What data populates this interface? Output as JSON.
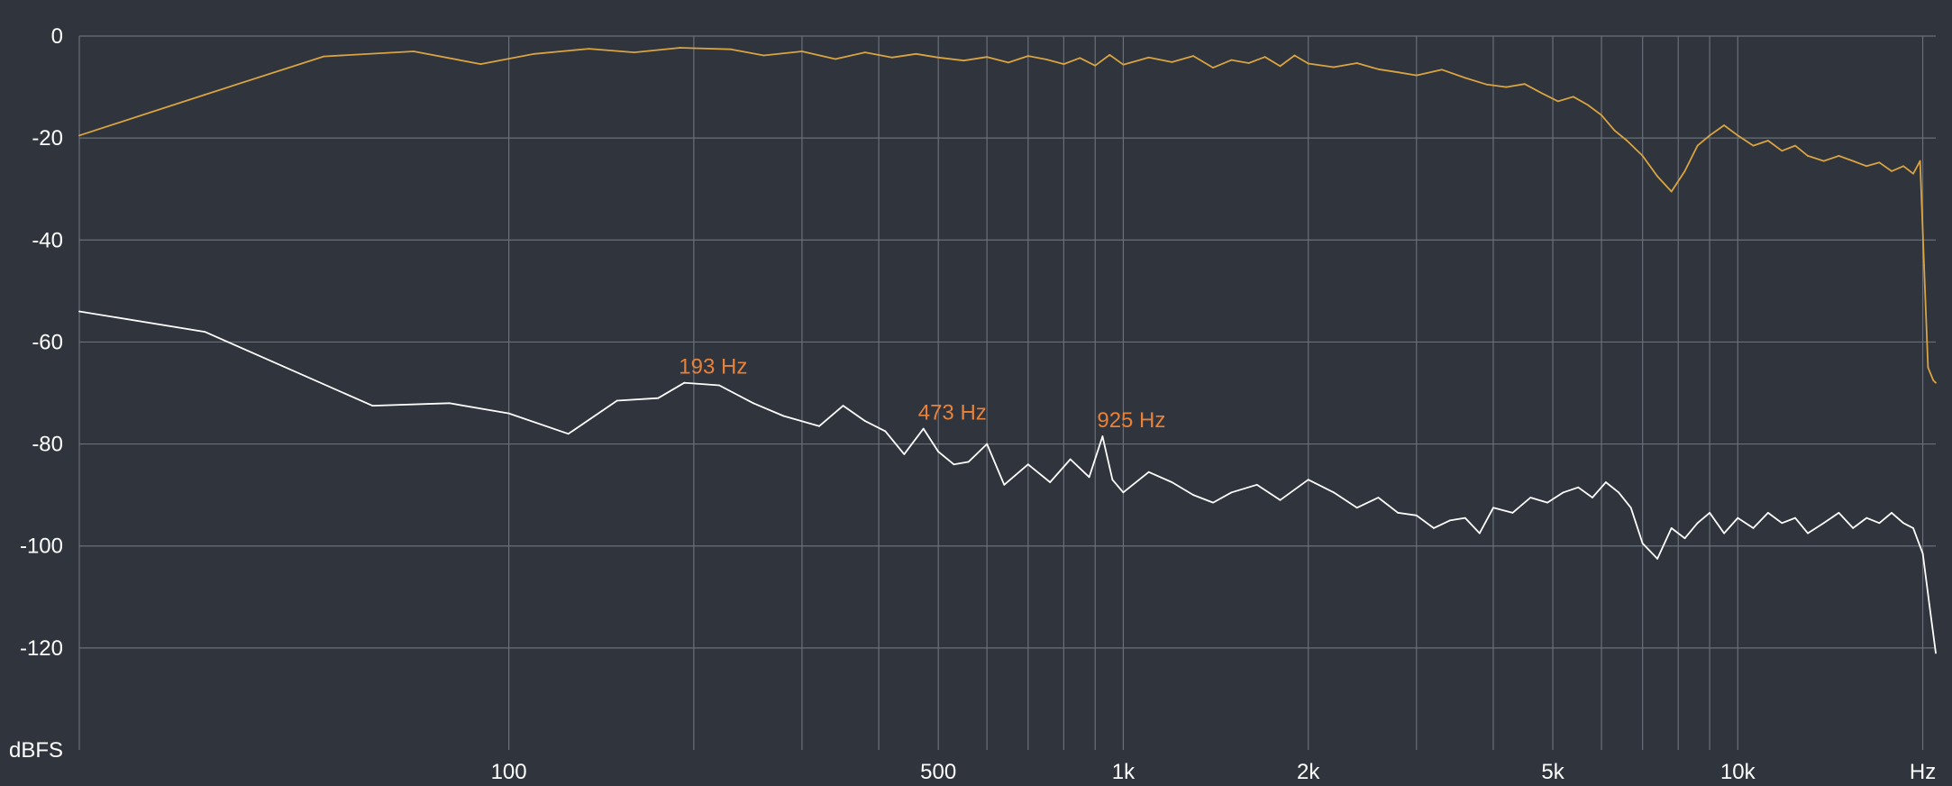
{
  "chart_data": {
    "type": "line",
    "x_scale": "log",
    "xlim": [
      20,
      21000
    ],
    "ylim": [
      -140,
      0
    ],
    "grid": true,
    "ylabel": "dBFS",
    "xlabel": "",
    "x_tick_labels": [
      {
        "value": 100,
        "label": "100"
      },
      {
        "value": 500,
        "label": "500"
      },
      {
        "value": 1000,
        "label": "1k"
      },
      {
        "value": 2000,
        "label": "2k"
      },
      {
        "value": 5000,
        "label": "5k"
      },
      {
        "value": 10000,
        "label": "10k"
      },
      {
        "value": 20000,
        "label": "Hz"
      }
    ],
    "y_ticks": [
      0,
      -20,
      -40,
      -60,
      -80,
      -100,
      -120
    ],
    "x_grid": [
      100,
      200,
      300,
      400,
      500,
      600,
      700,
      800,
      900,
      1000,
      2000,
      3000,
      4000,
      5000,
      6000,
      7000,
      8000,
      9000,
      10000,
      20000
    ],
    "series": [
      {
        "color": "#d9a441",
        "x": [
          20,
          32,
          50,
          70,
          90,
          110,
          135,
          160,
          190,
          230,
          260,
          300,
          340,
          380,
          420,
          460,
          500,
          550,
          600,
          650,
          700,
          750,
          800,
          850,
          900,
          950,
          1000,
          1100,
          1200,
          1300,
          1400,
          1500,
          1600,
          1700,
          1800,
          1900,
          2000,
          2200,
          2400,
          2600,
          2800,
          3000,
          3300,
          3600,
          3900,
          4200,
          4500,
          4800,
          5100,
          5400,
          5700,
          6000,
          6300,
          6600,
          7000,
          7400,
          7800,
          8200,
          8600,
          9000,
          9500,
          10000,
          10600,
          11200,
          11800,
          12400,
          13000,
          13800,
          14600,
          15400,
          16200,
          17000,
          17800,
          18600,
          19300,
          19800,
          20100,
          20400,
          20800,
          21000
        ],
        "y": [
          -19.5,
          -11.5,
          -4,
          -3,
          -5.5,
          -3.5,
          -2.5,
          -3.2,
          -2.3,
          -2.6,
          -3.8,
          -3,
          -4.5,
          -3.2,
          -4.2,
          -3.5,
          -4.2,
          -4.8,
          -4.1,
          -5.2,
          -3.9,
          -4.6,
          -5.5,
          -4.3,
          -5.8,
          -3.7,
          -5.6,
          -4.2,
          -5.1,
          -3.9,
          -6.2,
          -4.7,
          -5.3,
          -4.1,
          -5.9,
          -3.8,
          -5.4,
          -6.1,
          -5.3,
          -6.5,
          -7.1,
          -7.7,
          -6.6,
          -8.2,
          -9.5,
          -10,
          -9.4,
          -11.2,
          -12.8,
          -11.9,
          -13.5,
          -15.5,
          -18.5,
          -20.5,
          -23.5,
          -27.5,
          -30.5,
          -26.5,
          -21.5,
          -19.5,
          -17.5,
          -19.5,
          -21.5,
          -20.5,
          -22.5,
          -21.5,
          -23.5,
          -24.5,
          -23.5,
          -24.5,
          -25.5,
          -24.8,
          -26.5,
          -25.5,
          -27,
          -24.5,
          -45,
          -65,
          -67.5,
          -68
        ]
      },
      {
        "color": "#ffffff",
        "x": [
          20,
          32,
          60,
          80,
          100,
          125,
          150,
          175,
          193,
          220,
          250,
          280,
          320,
          350,
          380,
          410,
          440,
          473,
          500,
          530,
          560,
          600,
          640,
          700,
          760,
          820,
          880,
          925,
          960,
          1000,
          1100,
          1200,
          1300,
          1400,
          1500,
          1650,
          1800,
          2000,
          2200,
          2400,
          2600,
          2800,
          3000,
          3200,
          3400,
          3600,
          3800,
          4000,
          4300,
          4600,
          4900,
          5200,
          5500,
          5800,
          6100,
          6400,
          6700,
          7000,
          7400,
          7800,
          8200,
          8600,
          9000,
          9500,
          10000,
          10600,
          11200,
          11800,
          12400,
          13000,
          13800,
          14600,
          15400,
          16200,
          17000,
          17800,
          18600,
          19300,
          20000,
          20500,
          21000
        ],
        "y": [
          -54,
          -58,
          -72.5,
          -72,
          -74,
          -78,
          -71.5,
          -71,
          -68,
          -68.5,
          -72,
          -74.5,
          -76.5,
          -72.5,
          -75.5,
          -77.5,
          -82,
          -77,
          -81.5,
          -84,
          -83.5,
          -80,
          -88,
          -84,
          -87.5,
          -83,
          -86.5,
          -78.5,
          -87,
          -89.5,
          -85.5,
          -87.5,
          -90,
          -91.5,
          -89.5,
          -88,
          -91,
          -87,
          -89.5,
          -92.5,
          -90.5,
          -93.5,
          -94,
          -96.5,
          -95,
          -94.5,
          -97.5,
          -92.5,
          -93.5,
          -90.5,
          -91.5,
          -89.5,
          -88.5,
          -90.5,
          -87.5,
          -89.5,
          -92.5,
          -99.5,
          -102.5,
          -96.5,
          -98.5,
          -95.5,
          -93.5,
          -97.5,
          -94.5,
          -96.5,
          -93.5,
          -95.5,
          -94.5,
          -97.5,
          -95.5,
          -93.5,
          -96.5,
          -94.5,
          -95.5,
          -93.5,
          -95.5,
          -96.5,
          -101.5,
          -111.5,
          -121
        ]
      }
    ],
    "annotations": [
      {
        "text": "193 Hz",
        "x": 193,
        "y": -68,
        "color": "#e8823a"
      },
      {
        "text": "473 Hz",
        "x": 473,
        "y": -77,
        "color": "#e8823a"
      },
      {
        "text": "925 Hz",
        "x": 925,
        "y": -78.5,
        "color": "#e8823a"
      }
    ]
  }
}
